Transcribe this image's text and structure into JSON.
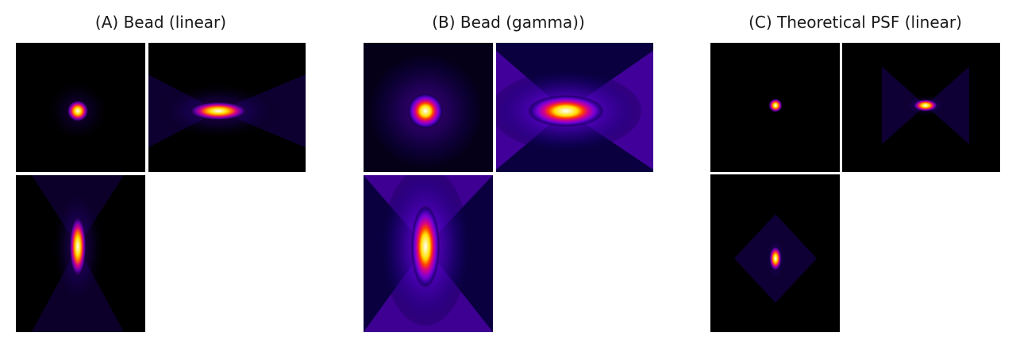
{
  "panels": [
    {
      "title": "(A) Bead (linear)"
    },
    {
      "title": "(B) Bead (gamma))"
    },
    {
      "title": "(C) Theoretical PSF (linear)"
    }
  ],
  "colormap": {
    "black": "#000000",
    "deep_blue": "#120060",
    "purple": "#7a00d6",
    "magenta": "#d4008a",
    "red": "#ff2a00",
    "orange": "#ff9a00",
    "yellow": "#ffe000",
    "white": "#ffffff"
  }
}
